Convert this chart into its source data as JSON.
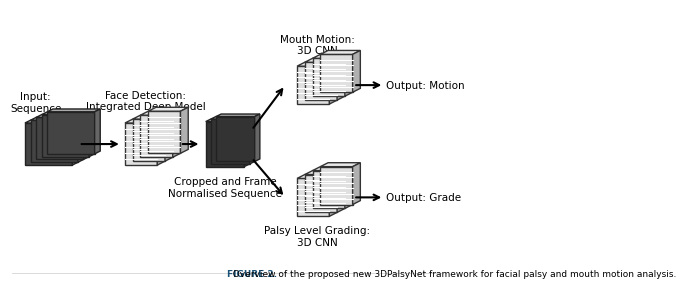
{
  "title": "FIGURE 2.",
  "caption": "  Overview of the proposed new 3DPalsyNet framework for facial palsy and mouth motion analysis.",
  "background_color": "#ffffff",
  "labels": {
    "input": "Input:\nSequence",
    "face_detection": "Face Detection:\nIntegrated Deep Model",
    "cropped": "Cropped and Frame\nNormalised Sequence",
    "mouth_motion": "Mouth Motion:\n3D CNN",
    "palsy_grading": "Palsy Level Grading:\n3D CNN",
    "output_motion": "Output: Motion",
    "output_grade": "Output: Grade"
  },
  "colors": {
    "box_face": "#555555",
    "box_edge": "#333333",
    "box_fill": "#dddddd",
    "box_stripe": "#ffffff",
    "arrow": "#000000",
    "text": "#000000",
    "title_color": "#1a5276",
    "caption_color": "#000000"
  }
}
